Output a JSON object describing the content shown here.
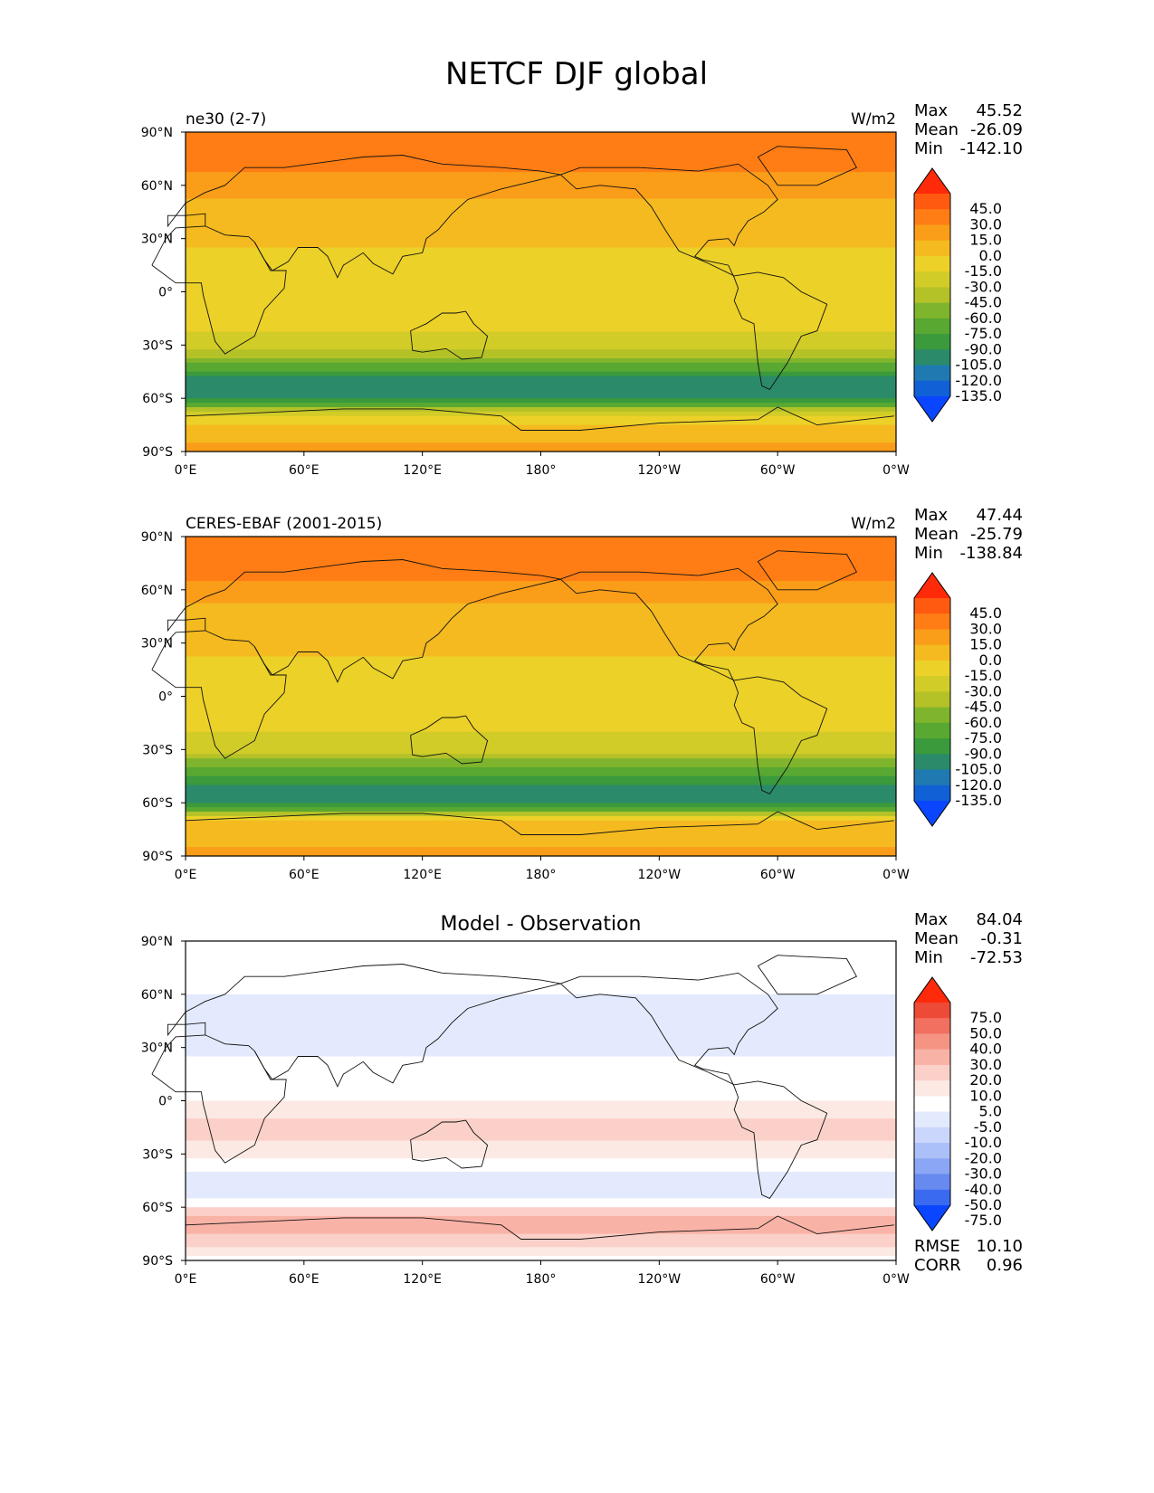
{
  "figure": {
    "title": "NETCF DJF global"
  },
  "chart_data": [
    {
      "type": "heatmap",
      "left_label": "ne30 (2-7)",
      "center_label": "",
      "units": "W/m2",
      "stats": {
        "labels": [
          "Max",
          "Mean",
          "Min"
        ],
        "values": [
          "45.52",
          "-26.09",
          "-142.10"
        ]
      },
      "colorbar": {
        "levels": [
          "45.0",
          "30.0",
          "15.0",
          "0.0",
          "-15.0",
          "-30.0",
          "-45.0",
          "-60.0",
          "-75.0",
          "-90.0",
          "-105.0",
          "-120.0",
          "-135.0"
        ],
        "colors": [
          "#ff2a0a",
          "#ff5a10",
          "#ff7d14",
          "#fa9d19",
          "#f4ba20",
          "#ecd128",
          "#d2cc28",
          "#b4c228",
          "#7fb52c",
          "#58a832",
          "#3a9a3c",
          "#2a8a6a",
          "#1e7ab0",
          "#1060d6",
          "#0a46ff"
        ]
      },
      "x_ticks": [
        "0°E",
        "60°E",
        "120°E",
        "180°",
        "120°W",
        "60°W",
        "0°W"
      ],
      "y_ticks": [
        "90°N",
        "60°N",
        "30°N",
        "0°",
        "30°S",
        "60°S",
        "90°S"
      ],
      "lat_profile": [
        [
          90,
          20
        ],
        [
          75,
          28
        ],
        [
          60,
          5
        ],
        [
          45,
          -5
        ],
        [
          30,
          -10
        ],
        [
          15,
          -22
        ],
        [
          0,
          -28
        ],
        [
          -15,
          -26
        ],
        [
          -30,
          -35
        ],
        [
          -40,
          -70
        ],
        [
          -50,
          -110
        ],
        [
          -60,
          -115
        ],
        [
          -70,
          -20
        ],
        [
          -90,
          5
        ]
      ]
    },
    {
      "type": "heatmap",
      "left_label": "CERES-EBAF (2001-2015)",
      "center_label": "",
      "units": "W/m2",
      "stats": {
        "labels": [
          "Max",
          "Mean",
          "Min"
        ],
        "values": [
          "47.44",
          "-25.79",
          "-138.84"
        ]
      },
      "colorbar": {
        "levels": [
          "45.0",
          "30.0",
          "15.0",
          "0.0",
          "-15.0",
          "-30.0",
          "-45.0",
          "-60.0",
          "-75.0",
          "-90.0",
          "-105.0",
          "-120.0",
          "-135.0"
        ],
        "colors": [
          "#ff2a0a",
          "#ff5a10",
          "#ff7d14",
          "#fa9d19",
          "#f4ba20",
          "#ecd128",
          "#d2cc28",
          "#b4c228",
          "#7fb52c",
          "#58a832",
          "#3a9a3c",
          "#2a8a6a",
          "#1e7ab0",
          "#1060d6",
          "#0a46ff"
        ]
      },
      "x_ticks": [
        "0°E",
        "60°E",
        "120°E",
        "180°",
        "120°W",
        "60°W",
        "0°W"
      ],
      "y_ticks": [
        "90°N",
        "60°N",
        "30°N",
        "0°",
        "30°S",
        "60°S",
        "90°S"
      ],
      "lat_profile": [
        [
          90,
          22
        ],
        [
          75,
          30
        ],
        [
          60,
          5
        ],
        [
          45,
          -5
        ],
        [
          30,
          -8
        ],
        [
          15,
          -20
        ],
        [
          0,
          -30
        ],
        [
          -15,
          -24
        ],
        [
          -30,
          -40
        ],
        [
          -40,
          -75
        ],
        [
          -50,
          -105
        ],
        [
          -60,
          -112
        ],
        [
          -70,
          -15
        ],
        [
          -90,
          5
        ]
      ]
    },
    {
      "type": "heatmap",
      "left_label": "",
      "center_label": "Model - Observation",
      "units": "",
      "stats": {
        "labels": [
          "Max",
          "Mean",
          "Min"
        ],
        "values": [
          "84.04",
          "-0.31",
          "-72.53"
        ]
      },
      "colorbar": {
        "levels": [
          "75.0",
          "50.0",
          "40.0",
          "30.0",
          "20.0",
          "10.0",
          "5.0",
          "-5.0",
          "-10.0",
          "-20.0",
          "-30.0",
          "-40.0",
          "-50.0",
          "-75.0"
        ],
        "colors": [
          "#ff2a0a",
          "#ee4a38",
          "#f27060",
          "#f69484",
          "#f9b3a6",
          "#fbd0c8",
          "#fde9e4",
          "#ffffff",
          "#e4eafd",
          "#cad6fb",
          "#abbff8",
          "#8aa6f5",
          "#678af0",
          "#3a6af0",
          "#0a46ff"
        ]
      },
      "x_ticks": [
        "0°E",
        "60°E",
        "120°E",
        "180°",
        "120°W",
        "60°W",
        "0°W"
      ],
      "y_ticks": [
        "90°N",
        "60°N",
        "30°N",
        "0°",
        "30°S",
        "60°S",
        "90°S"
      ],
      "lat_profile": [
        [
          90,
          0
        ],
        [
          60,
          -5
        ],
        [
          30,
          -8
        ],
        [
          15,
          0
        ],
        [
          0,
          5
        ],
        [
          -15,
          12
        ],
        [
          -30,
          8
        ],
        [
          -45,
          -10
        ],
        [
          -55,
          -5
        ],
        [
          -65,
          20
        ],
        [
          -72,
          25
        ],
        [
          -90,
          0
        ]
      ],
      "extra_stats": {
        "labels": [
          "RMSE",
          "CORR"
        ],
        "values": [
          "10.10",
          "0.96"
        ]
      }
    }
  ]
}
